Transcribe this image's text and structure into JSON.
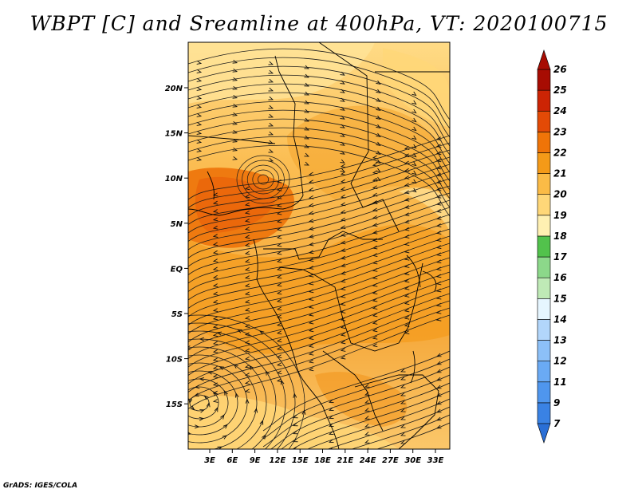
{
  "title": "WBPT [C] and Sreamline at 400hPa, VT: 2020100715",
  "credit": "GrADS: IGES/COLA",
  "map": {
    "lat_ticks": [
      "20N",
      "15N",
      "10N",
      "5N",
      "EQ",
      "5S",
      "10S",
      "15S"
    ],
    "lon_ticks": [
      "3E",
      "6E",
      "9E",
      "12E",
      "15E",
      "18E",
      "21E",
      "24E",
      "27E",
      "30E",
      "33E"
    ]
  },
  "colorbar": {
    "labels": [
      "7",
      "9",
      "11",
      "12",
      "13",
      "14",
      "15",
      "16",
      "17",
      "18",
      "19",
      "20",
      "21",
      "22",
      "23",
      "24",
      "25",
      "26"
    ],
    "colors": [
      "#2a6fd6",
      "#3a82e4",
      "#4f96ee",
      "#6aaaf4",
      "#8cc0f8",
      "#b2d6fb",
      "#e6f6ff",
      "#bfeab6",
      "#8cd88a",
      "#52c24c",
      "#fff0b2",
      "#ffd778",
      "#fbbb46",
      "#f49a18",
      "#ef7408",
      "#e34a06",
      "#cc2404",
      "#a70c02"
    ]
  }
}
